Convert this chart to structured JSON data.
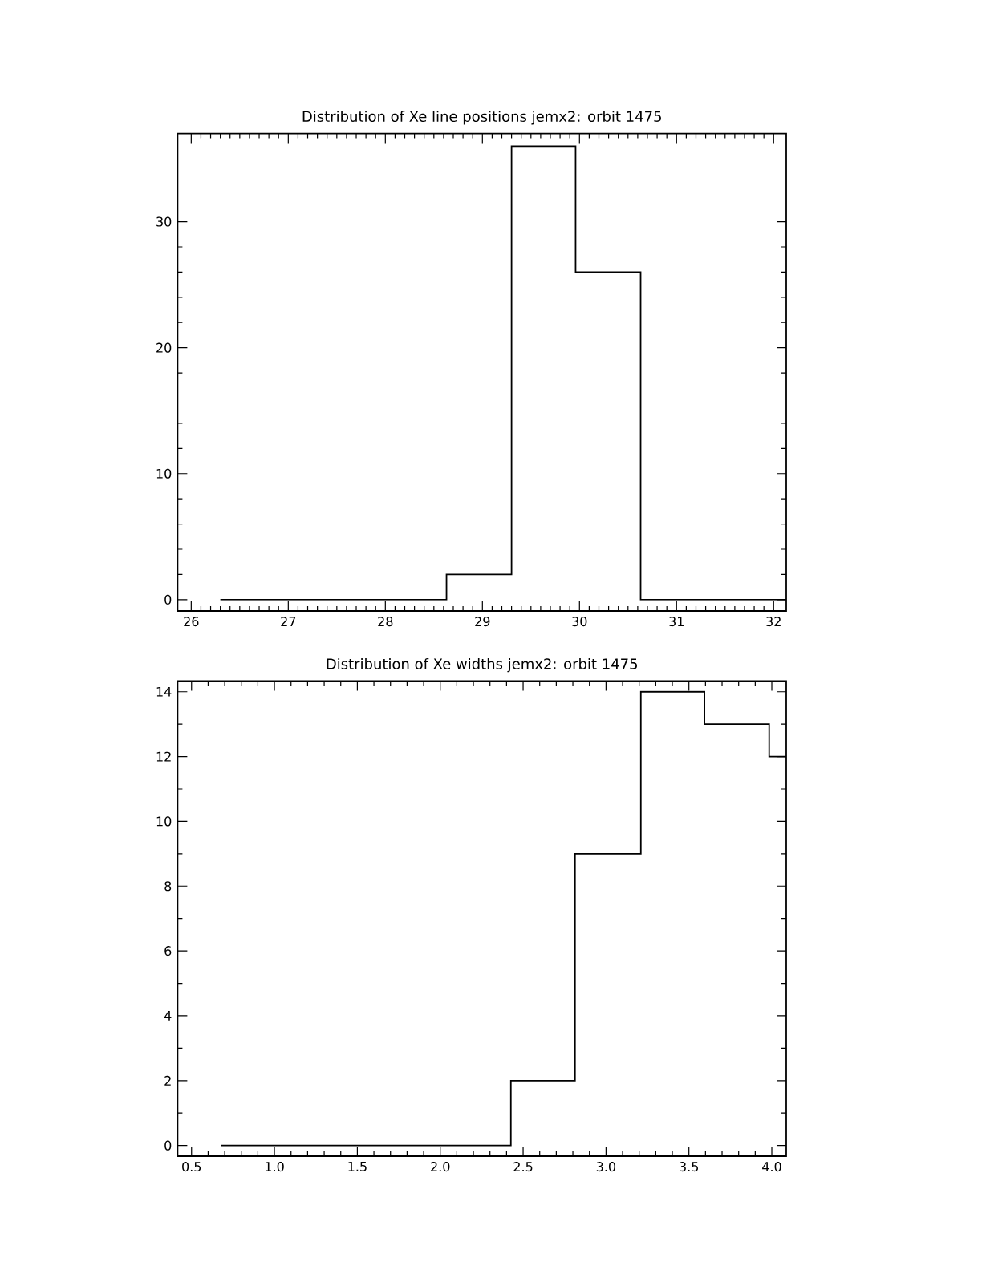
{
  "chart_data": [
    {
      "type": "histogram",
      "title": "Distribution of Xe line positions jemx2: orbit 1475",
      "bins": [
        26.3,
        28.63,
        29.3,
        29.96,
        30.63,
        32.13
      ],
      "values": [
        0,
        2,
        36,
        26,
        0
      ],
      "color": "#000000",
      "xlim": [
        25.86,
        32.13
      ],
      "ylim": [
        -0.9,
        37
      ],
      "xticks": [
        26,
        27,
        28,
        29,
        30,
        31,
        32
      ],
      "yticks": [
        0,
        10,
        20,
        30
      ]
    },
    {
      "type": "histogram",
      "title": "Distribution of Xe widths jemx2: orbit 1475",
      "bins": [
        0.677,
        2.426,
        2.813,
        3.21,
        3.594,
        3.984,
        4.087
      ],
      "values": [
        0,
        2,
        9,
        14,
        13,
        12
      ],
      "color": "#000000",
      "xlim": [
        0.416,
        4.087
      ],
      "ylim": [
        -0.33,
        14.33
      ],
      "xticks": [
        {
          "value": 0.5,
          "label": "0.5"
        },
        {
          "value": 1.0,
          "label": "1.0"
        },
        {
          "value": 1.5,
          "label": "1.5"
        },
        {
          "value": 2.0,
          "label": "2.0"
        },
        {
          "value": 2.5,
          "label": "2.5"
        },
        {
          "value": 3.0,
          "label": "3.0"
        },
        {
          "value": 3.5,
          "label": "3.5"
        },
        {
          "value": 4.0,
          "label": "4.0"
        }
      ],
      "yticks": [
        0,
        2,
        4,
        6,
        8,
        10,
        12,
        14
      ]
    }
  ]
}
